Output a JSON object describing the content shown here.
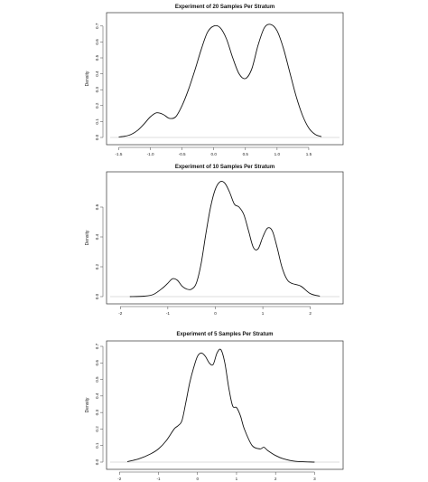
{
  "colors": {
    "line": "#111111",
    "frame": "#333333",
    "baseline": "#bbbbbb",
    "background": "#ffffff"
  },
  "chart_data": [
    {
      "type": "line",
      "title": "Experiment of 20 Samples Per Stratum",
      "xlabel": "",
      "ylabel": "Density",
      "xlim": [
        -1.55,
        1.9
      ],
      "ylim": [
        0,
        0.75
      ],
      "xticks": [
        -1.5,
        -1.0,
        -0.5,
        0.0,
        0.5,
        1.0,
        1.5
      ],
      "xtick_labels": [
        "-1.5",
        "-1.0",
        "-0.5",
        "0.0",
        "0.5",
        "1.0",
        "1.5"
      ],
      "yticks": [
        0.0,
        0.1,
        0.2,
        0.3,
        0.4,
        0.5,
        0.6,
        0.7
      ],
      "ytick_labels": [
        "0.0",
        "0.1",
        "0.2",
        "0.3",
        "0.4",
        "0.5",
        "0.6",
        "0.7"
      ],
      "grid": false,
      "series": [
        {
          "x": [
            -1.5,
            -1.4,
            -1.3,
            -1.2,
            -1.1,
            -1.0,
            -0.9,
            -0.8,
            -0.7,
            -0.6,
            -0.5,
            -0.4,
            -0.3,
            -0.2,
            -0.1,
            0.0,
            0.1,
            0.2,
            0.3,
            0.4,
            0.5,
            0.6,
            0.7,
            0.8,
            0.9,
            1.0,
            1.1,
            1.2,
            1.3,
            1.4,
            1.5,
            1.6,
            1.7
          ],
          "y": [
            0.003,
            0.008,
            0.02,
            0.045,
            0.085,
            0.13,
            0.155,
            0.145,
            0.12,
            0.13,
            0.2,
            0.3,
            0.42,
            0.55,
            0.66,
            0.7,
            0.69,
            0.62,
            0.5,
            0.4,
            0.37,
            0.43,
            0.58,
            0.69,
            0.71,
            0.67,
            0.56,
            0.41,
            0.26,
            0.14,
            0.06,
            0.02,
            0.005
          ]
        }
      ]
    },
    {
      "type": "line",
      "title": "Experiment of 10 Samples Per Stratum",
      "xlabel": "",
      "ylabel": "Density",
      "xlim": [
        -2.1,
        2.5
      ],
      "ylim": [
        0,
        0.8
      ],
      "xticks": [
        -2,
        -1,
        0,
        1,
        2
      ],
      "xtick_labels": [
        "-2",
        "-1",
        "0",
        "1",
        "2"
      ],
      "yticks": [
        0.0,
        0.2,
        0.4,
        0.6
      ],
      "ytick_labels": [
        "0.0",
        "0.2",
        "0.4",
        "0.6"
      ],
      "grid": false,
      "series": [
        {
          "x": [
            -1.8,
            -1.5,
            -1.3,
            -1.1,
            -1.0,
            -0.9,
            -0.8,
            -0.7,
            -0.6,
            -0.5,
            -0.4,
            -0.3,
            -0.2,
            -0.1,
            0.0,
            0.1,
            0.2,
            0.3,
            0.4,
            0.5,
            0.6,
            0.7,
            0.8,
            0.9,
            1.0,
            1.1,
            1.2,
            1.3,
            1.4,
            1.5,
            1.6,
            1.8,
            2.0,
            2.2
          ],
          "y": [
            0.0,
            0.003,
            0.015,
            0.06,
            0.09,
            0.12,
            0.11,
            0.07,
            0.05,
            0.05,
            0.09,
            0.22,
            0.42,
            0.6,
            0.72,
            0.77,
            0.76,
            0.7,
            0.62,
            0.6,
            0.55,
            0.44,
            0.33,
            0.32,
            0.4,
            0.46,
            0.44,
            0.33,
            0.2,
            0.12,
            0.09,
            0.07,
            0.02,
            0.003
          ]
        }
      ]
    },
    {
      "type": "line",
      "title": "Experiment of 5 Samples Per Stratum",
      "xlabel": "",
      "ylabel": "Density",
      "xlim": [
        -2.1,
        3.5
      ],
      "ylim": [
        0,
        0.7
      ],
      "xticks": [
        -2,
        -1,
        0,
        1,
        2,
        3
      ],
      "xtick_labels": [
        "-2",
        "-1",
        "0",
        "1",
        "2",
        "3"
      ],
      "yticks": [
        0.0,
        0.1,
        0.2,
        0.3,
        0.4,
        0.5,
        0.6,
        0.7
      ],
      "ytick_labels": [
        "0.0",
        "0.1",
        "0.2",
        "0.3",
        "0.4",
        "0.5",
        "0.6",
        "0.7"
      ],
      "grid": false,
      "series": [
        {
          "x": [
            -1.8,
            -1.5,
            -1.2,
            -1.0,
            -0.8,
            -0.6,
            -0.5,
            -0.4,
            -0.3,
            -0.2,
            -0.1,
            0.0,
            0.1,
            0.2,
            0.3,
            0.4,
            0.5,
            0.6,
            0.7,
            0.8,
            0.9,
            1.0,
            1.1,
            1.2,
            1.4,
            1.6,
            1.7,
            1.8,
            2.0,
            2.2,
            2.5,
            3.0
          ],
          "y": [
            0.003,
            0.02,
            0.05,
            0.08,
            0.13,
            0.2,
            0.22,
            0.25,
            0.36,
            0.48,
            0.57,
            0.64,
            0.66,
            0.64,
            0.6,
            0.59,
            0.66,
            0.68,
            0.6,
            0.45,
            0.34,
            0.33,
            0.28,
            0.2,
            0.1,
            0.08,
            0.09,
            0.07,
            0.04,
            0.02,
            0.005,
            0.0
          ]
        }
      ]
    }
  ]
}
